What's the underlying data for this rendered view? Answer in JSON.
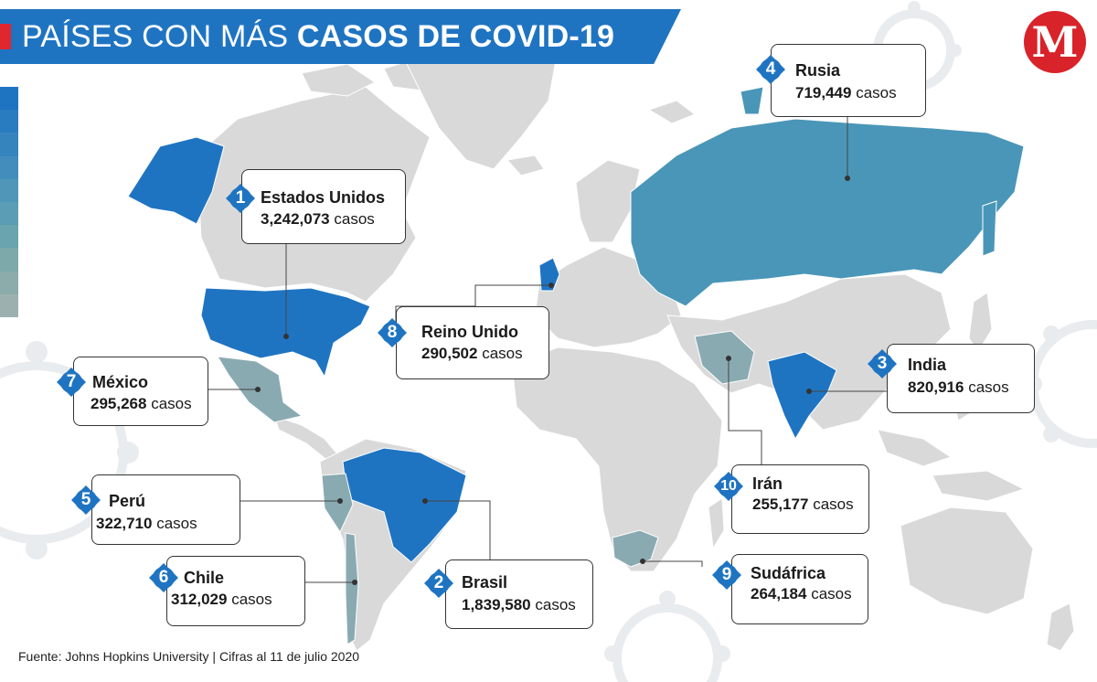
{
  "title": {
    "normal": "PAÍSES CON MÁS",
    "bold": "CASOS DE COVID-19"
  },
  "logo": {
    "letter": "M",
    "color": "#d8232a"
  },
  "colors": {
    "banner": "#1f74c2",
    "accent": "#e0262e",
    "land": "#d9d9d9",
    "highlight_dark": "#1f74c2",
    "highlight_mid": "#4a96b8",
    "highlight_light": "#8aaab2",
    "badge": "#1f74c2",
    "legend_scale": [
      "#1f74c2",
      "#2a7cc0",
      "#3684be",
      "#428dbb",
      "#4f96b8",
      "#5a9db4",
      "#6aa4ae",
      "#7da9aa",
      "#8cabab",
      "#9db0b0"
    ]
  },
  "countries": [
    {
      "rank": "1",
      "name": "Estados Unidos",
      "cases_number": "3,242,073",
      "cases_unit": "casos"
    },
    {
      "rank": "2",
      "name": "Brasil",
      "cases_number": "1,839,580",
      "cases_unit": "casos"
    },
    {
      "rank": "3",
      "name": "India",
      "cases_number": "820,916",
      "cases_unit": "casos"
    },
    {
      "rank": "4",
      "name": "Rusia",
      "cases_number": "719,449",
      "cases_unit": "casos"
    },
    {
      "rank": "5",
      "name": "Perú",
      "cases_number": "322,710",
      "cases_unit": "casos"
    },
    {
      "rank": "6",
      "name": "Chile",
      "cases_number": "312,029",
      "cases_unit": "casos"
    },
    {
      "rank": "7",
      "name": "México",
      "cases_number": "295,268",
      "cases_unit": "casos"
    },
    {
      "rank": "8",
      "name": "Reino Unido",
      "cases_number": "290,502",
      "cases_unit": "casos"
    },
    {
      "rank": "9",
      "name": "Sudáfrica",
      "cases_number": "264,184",
      "cases_unit": "casos"
    },
    {
      "rank": "10",
      "name": "Irán",
      "cases_number": "255,177",
      "cases_unit": "casos"
    }
  ],
  "source": "Fuente: Johns Hopkins University | Cifras al 11 de julio 2020"
}
